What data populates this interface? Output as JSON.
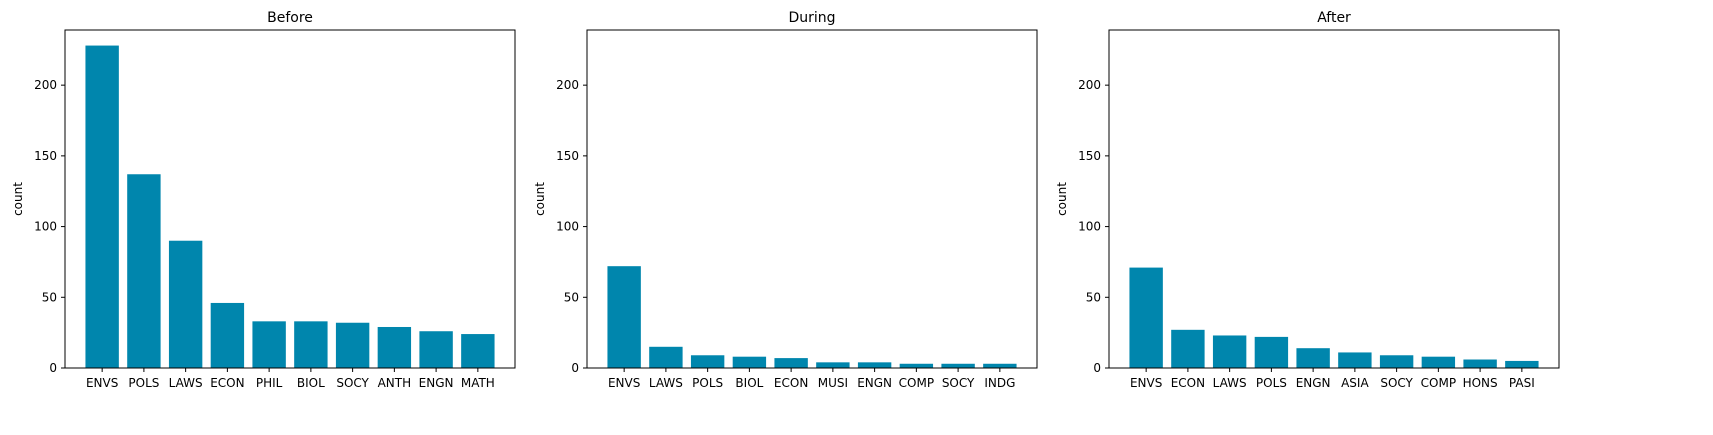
{
  "colors": {
    "bar": "#0086ad",
    "axis": "#000000",
    "background": "#ffffff"
  },
  "chart_data": [
    {
      "type": "bar",
      "title": "Before",
      "ylabel": "count",
      "xlabel": "",
      "ylim": [
        0,
        239
      ],
      "yticks": [
        0,
        50,
        100,
        150,
        200
      ],
      "grid": false,
      "categories": [
        "ENVS",
        "POLS",
        "LAWS",
        "ECON",
        "PHIL",
        "BIOL",
        "SOCY",
        "ANTH",
        "ENGN",
        "MATH"
      ],
      "values": [
        228,
        137,
        90,
        46,
        33,
        33,
        32,
        29,
        26,
        24
      ]
    },
    {
      "type": "bar",
      "title": "During",
      "ylabel": "count",
      "xlabel": "",
      "ylim": [
        0,
        239
      ],
      "yticks": [
        0,
        50,
        100,
        150,
        200
      ],
      "grid": false,
      "categories": [
        "ENVS",
        "LAWS",
        "POLS",
        "BIOL",
        "ECON",
        "MUSI",
        "ENGN",
        "COMP",
        "SOCY",
        "INDG"
      ],
      "values": [
        72,
        15,
        9,
        8,
        7,
        4,
        4,
        3,
        3,
        3
      ]
    },
    {
      "type": "bar",
      "title": "After",
      "ylabel": "count",
      "xlabel": "",
      "ylim": [
        0,
        239
      ],
      "yticks": [
        0,
        50,
        100,
        150,
        200
      ],
      "grid": false,
      "categories": [
        "ENVS",
        "ECON",
        "LAWS",
        "POLS",
        "ENGN",
        "ASIA",
        "SOCY",
        "COMP",
        "HONS",
        "PASI"
      ],
      "values": [
        71,
        27,
        23,
        22,
        14,
        11,
        9,
        8,
        6,
        5
      ]
    }
  ]
}
